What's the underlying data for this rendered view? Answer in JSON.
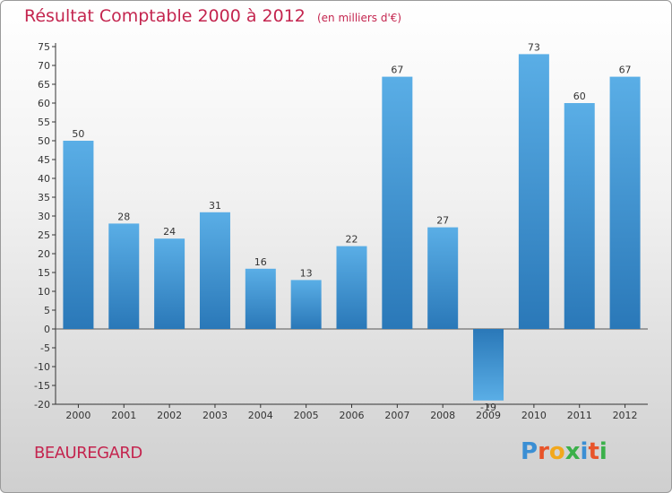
{
  "title": "Résultat Comptable 2000 à 2012",
  "unit": "(en milliers d'€)",
  "commune": "BEAUREGARD",
  "brand": {
    "letters": [
      "P",
      "r",
      "o",
      "x",
      "i",
      "t",
      "i"
    ],
    "colors": [
      "#3b8fd4",
      "#e8542a",
      "#f2a81d",
      "#3bb04a",
      "#3b8fd4",
      "#e8542a",
      "#3bb04a"
    ]
  },
  "colors": {
    "bar_light": "#5aaee6",
    "bar_dark": "#2a78b8",
    "title": "#c4254f"
  },
  "chart_data": {
    "type": "bar",
    "title": "Résultat Comptable 2000 à 2012",
    "ylabel": "(en milliers d'€)",
    "xlabel": "",
    "categories": [
      "2000",
      "2001",
      "2002",
      "2003",
      "2004",
      "2005",
      "2006",
      "2007",
      "2008",
      "2009",
      "2010",
      "2011",
      "2012"
    ],
    "values": [
      50,
      28,
      24,
      31,
      16,
      13,
      22,
      67,
      27,
      -19,
      73,
      60,
      67
    ],
    "ylim": [
      -20,
      75
    ],
    "yticks": [
      75,
      70,
      65,
      60,
      55,
      50,
      45,
      40,
      35,
      30,
      25,
      20,
      15,
      10,
      5,
      0,
      -5,
      -10,
      -15,
      -20
    ],
    "grid": false
  }
}
